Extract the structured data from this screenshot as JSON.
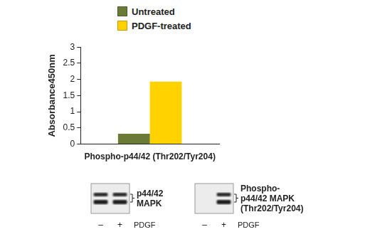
{
  "chart_data": {
    "type": "bar",
    "categories": [
      "Phospho-p44/42 (Thr202/Tyr204)"
    ],
    "series": [
      {
        "name": "Untreated",
        "color": "#6b7a35",
        "values": [
          0.32
        ]
      },
      {
        "name": "PDGF-treated",
        "color": "#ffd200",
        "values": [
          1.93
        ]
      }
    ],
    "ylabel": "Absorbance450nm",
    "ylim": [
      0,
      3
    ],
    "yticks": [
      0,
      0.5,
      1,
      1.5,
      2,
      2.5,
      3
    ],
    "grid": false,
    "legend": "top"
  },
  "blots": [
    {
      "label": [
        "p44/42",
        "MAPK"
      ],
      "lanes": [
        {
          "label": "–",
          "bands": true
        },
        {
          "label": "+",
          "bands": true
        }
      ],
      "treatment": "PDGF"
    },
    {
      "label": [
        "Phospho-",
        "p44/42 MAPK",
        "(Thr202/Tyr204)"
      ],
      "lanes": [
        {
          "label": "–",
          "bands": false
        },
        {
          "label": "+",
          "bands": true
        }
      ],
      "treatment": "PDGF"
    }
  ]
}
